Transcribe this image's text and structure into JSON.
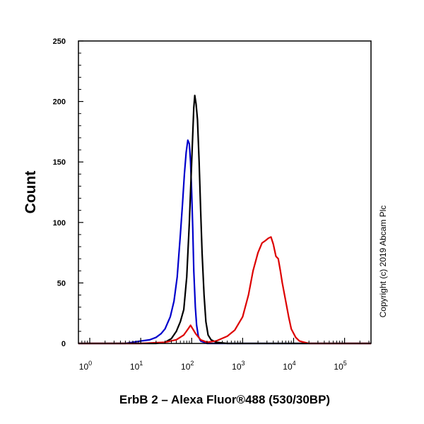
{
  "chart_data": {
    "type": "line",
    "xlabel": "ErbB 2 – Alexa Fluor®488 (530/30BP)",
    "ylabel": "Count",
    "x_scale": "log",
    "xlim": [
      0.6,
      330000
    ],
    "ylim": [
      0,
      250
    ],
    "y_ticks": [
      0,
      50,
      100,
      150,
      200,
      250
    ],
    "x_ticks": [
      {
        "base": "10",
        "exp": "0",
        "value": 1
      },
      {
        "base": "10",
        "exp": "1",
        "value": 10
      },
      {
        "base": "10",
        "exp": "2",
        "value": 100
      },
      {
        "base": "10",
        "exp": "3",
        "value": 1000
      },
      {
        "base": "10",
        "exp": "4",
        "value": 10000
      },
      {
        "base": "10",
        "exp": "5",
        "value": 100000
      }
    ],
    "grid": false,
    "legend": "none",
    "copyright": "Copyright (c) 2019 Abcam Plc",
    "series": [
      {
        "color": "#0000cc",
        "x": [
          0.6,
          5,
          10,
          15,
          20,
          25,
          30,
          38,
          45,
          52,
          60,
          66,
          72,
          78,
          84,
          90,
          95,
          100,
          105,
          110,
          118,
          125,
          135,
          150,
          175,
          200,
          300,
          1000,
          330000
        ],
        "values": [
          0,
          0,
          2,
          3,
          5,
          8,
          12,
          22,
          35,
          55,
          90,
          115,
          140,
          158,
          168,
          165,
          150,
          125,
          95,
          60,
          30,
          15,
          6,
          2,
          1,
          0,
          0,
          0,
          0
        ]
      },
      {
        "color": "#000000",
        "x": [
          0.6,
          10,
          20,
          30,
          40,
          50,
          60,
          70,
          80,
          90,
          100,
          110,
          115,
          122,
          130,
          140,
          150,
          160,
          175,
          190,
          210,
          240,
          300,
          500,
          1000,
          330000
        ],
        "values": [
          0,
          0,
          0,
          1,
          4,
          10,
          18,
          28,
          55,
          100,
          150,
          195,
          205,
          198,
          185,
          150,
          110,
          75,
          40,
          18,
          7,
          3,
          1,
          0,
          0,
          0
        ]
      },
      {
        "color": "#dd0000",
        "x": [
          0.6,
          10,
          30,
          50,
          70,
          85,
          95,
          105,
          120,
          150,
          200,
          300,
          500,
          700,
          1000,
          1300,
          1600,
          2000,
          2400,
          2800,
          3200,
          3600,
          4000,
          4500,
          5000,
          5500,
          6000,
          7000,
          8000,
          9000,
          11000,
          13000,
          16000,
          20000,
          30000,
          330000
        ],
        "values": [
          0,
          0,
          1,
          3,
          7,
          12,
          15,
          12,
          8,
          3,
          1,
          2,
          6,
          11,
          22,
          40,
          60,
          75,
          83,
          85,
          87,
          88,
          82,
          72,
          70,
          60,
          50,
          35,
          22,
          12,
          5,
          2,
          1,
          0,
          0,
          0
        ]
      }
    ]
  }
}
